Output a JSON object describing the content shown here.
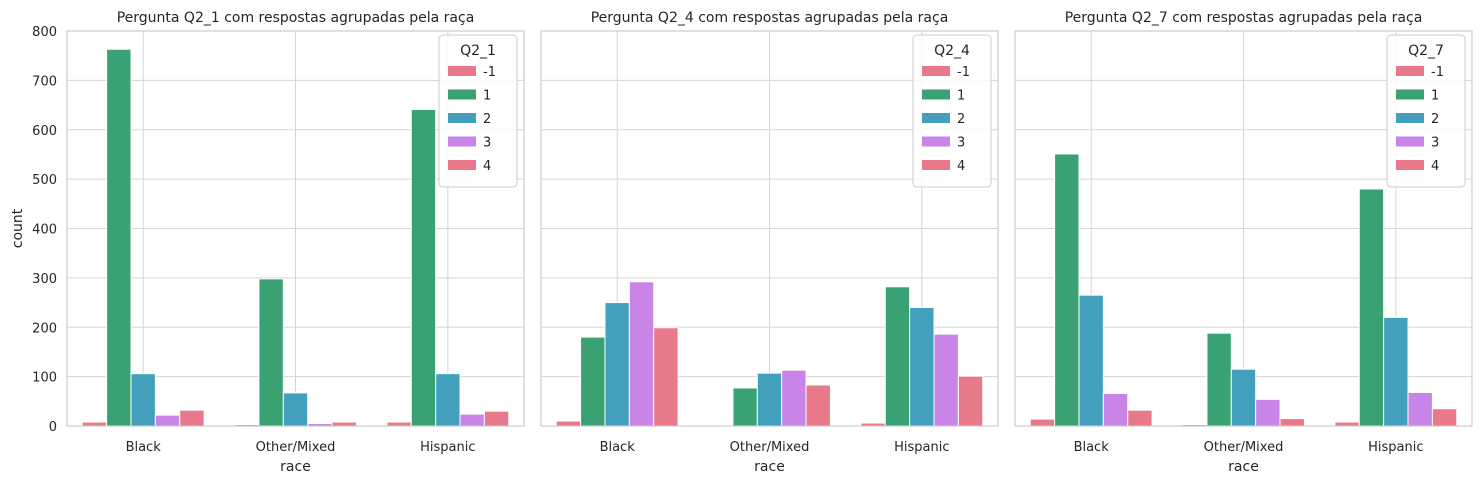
{
  "chart_data": [
    {
      "type": "bar",
      "title": "Pergunta Q2_1 com respostas agrupadas pela raça",
      "xlabel": "race",
      "ylabel": "count",
      "categories": [
        "Black",
        "Other/Mixed",
        "Hispanic"
      ],
      "ylim": [
        0,
        800
      ],
      "yticks": [
        0,
        100,
        200,
        300,
        400,
        500,
        600,
        700,
        800
      ],
      "grid": true,
      "legend_title": "Q2_1",
      "legend_position": "top-right",
      "series": [
        {
          "name": "-1",
          "color": "#e8798a",
          "values": [
            8,
            3,
            8
          ]
        },
        {
          "name": "1",
          "color": "#3aa272",
          "values": [
            763,
            298,
            641
          ]
        },
        {
          "name": "2",
          "color": "#42a0bd",
          "values": [
            106,
            67,
            106
          ]
        },
        {
          "name": "3",
          "color": "#c984e8",
          "values": [
            22,
            5,
            24
          ]
        },
        {
          "name": "4",
          "color": "#e8798a",
          "values": [
            32,
            8,
            30
          ]
        }
      ]
    },
    {
      "type": "bar",
      "title": "Pergunta Q2_4 com respostas agrupadas pela raça",
      "xlabel": "race",
      "ylabel": "",
      "categories": [
        "Black",
        "Other/Mixed",
        "Hispanic"
      ],
      "ylim": [
        0,
        800
      ],
      "yticks": [
        0,
        100,
        200,
        300,
        400,
        500,
        600,
        700,
        800
      ],
      "grid": true,
      "legend_title": "Q2_4",
      "legend_position": "top-right",
      "series": [
        {
          "name": "-1",
          "color": "#e8798a",
          "values": [
            10,
            2,
            6
          ]
        },
        {
          "name": "1",
          "color": "#3aa272",
          "values": [
            180,
            77,
            282
          ]
        },
        {
          "name": "2",
          "color": "#42a0bd",
          "values": [
            250,
            107,
            240
          ]
        },
        {
          "name": "3",
          "color": "#c984e8",
          "values": [
            292,
            113,
            186
          ]
        },
        {
          "name": "4",
          "color": "#e8798a",
          "values": [
            199,
            83,
            101
          ]
        }
      ]
    },
    {
      "type": "bar",
      "title": "Pergunta Q2_7 com respostas agrupadas pela raça",
      "xlabel": "race",
      "ylabel": "",
      "categories": [
        "Black",
        "Other/Mixed",
        "Hispanic"
      ],
      "ylim": [
        0,
        800
      ],
      "yticks": [
        0,
        100,
        200,
        300,
        400,
        500,
        600,
        700,
        800
      ],
      "grid": true,
      "legend_title": "Q2_7",
      "legend_position": "top-right",
      "series": [
        {
          "name": "-1",
          "color": "#e8798a",
          "values": [
            14,
            3,
            8
          ]
        },
        {
          "name": "1",
          "color": "#3aa272",
          "values": [
            551,
            188,
            480
          ]
        },
        {
          "name": "2",
          "color": "#42a0bd",
          "values": [
            265,
            115,
            220
          ]
        },
        {
          "name": "3",
          "color": "#c984e8",
          "values": [
            66,
            54,
            68
          ]
        },
        {
          "name": "4",
          "color": "#e8798a",
          "values": [
            32,
            15,
            35
          ]
        }
      ]
    }
  ]
}
